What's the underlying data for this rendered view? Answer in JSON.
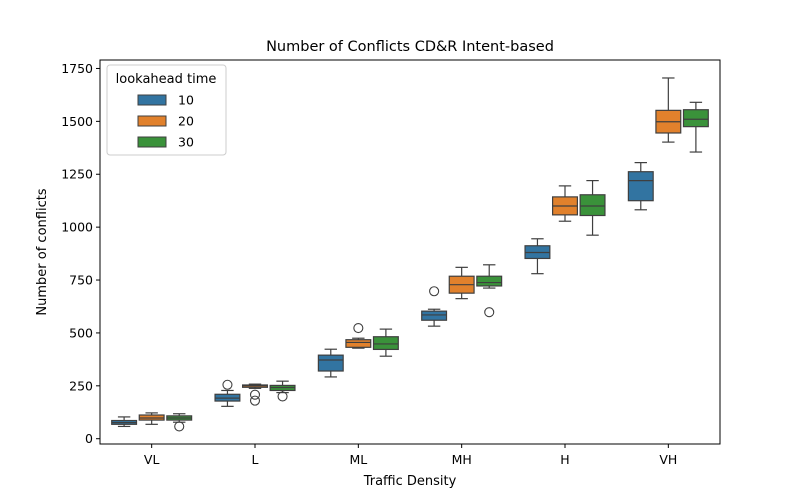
{
  "chart_data": {
    "type": "boxplot",
    "title": "Number of Conflicts CD&R Intent-based",
    "xlabel": "Traffic Density",
    "ylabel": "Number of conflicts",
    "ylim": [
      -25,
      1790
    ],
    "yticks": [
      0,
      250,
      500,
      750,
      1000,
      1250,
      1500,
      1750
    ],
    "ytick_labels": [
      "0",
      "250",
      "500",
      "750",
      "1000",
      "1250",
      "1500",
      "1750"
    ],
    "categories": [
      "VL",
      "L",
      "ML",
      "MH",
      "H",
      "VH"
    ],
    "legend": {
      "title": "lookahead time",
      "position": "top-left"
    },
    "series": [
      {
        "name": "10",
        "color": "#3274a1",
        "boxes": [
          {
            "whisker_low": 58,
            "q1": 68,
            "median": 76,
            "q3": 86,
            "whisker_high": 103,
            "outliers": []
          },
          {
            "whisker_low": 153,
            "q1": 178,
            "median": 192,
            "q3": 210,
            "whisker_high": 228,
            "outliers": [
              255
            ]
          },
          {
            "whisker_low": 292,
            "q1": 320,
            "median": 372,
            "q3": 395,
            "whisker_high": 423,
            "outliers": []
          },
          {
            "whisker_low": 532,
            "q1": 560,
            "median": 585,
            "q3": 603,
            "whisker_high": 612,
            "outliers": [
              697
            ]
          },
          {
            "whisker_low": 780,
            "q1": 852,
            "median": 880,
            "q3": 912,
            "whisker_high": 945,
            "outliers": []
          },
          {
            "whisker_low": 1082,
            "q1": 1125,
            "median": 1220,
            "q3": 1262,
            "whisker_high": 1305,
            "outliers": []
          }
        ]
      },
      {
        "name": "20",
        "color": "#e1812c",
        "boxes": [
          {
            "whisker_low": 68,
            "q1": 88,
            "median": 98,
            "q3": 112,
            "whisker_high": 122,
            "outliers": []
          },
          {
            "whisker_low": 238,
            "q1": 243,
            "median": 250,
            "q3": 254,
            "whisker_high": 258,
            "outliers": [
              208,
              180
            ]
          },
          {
            "whisker_low": 428,
            "q1": 432,
            "median": 455,
            "q3": 468,
            "whisker_high": 475,
            "outliers": [
              523
            ]
          },
          {
            "whisker_low": 662,
            "q1": 688,
            "median": 728,
            "q3": 768,
            "whisker_high": 810,
            "outliers": []
          },
          {
            "whisker_low": 1028,
            "q1": 1058,
            "median": 1100,
            "q3": 1143,
            "whisker_high": 1195,
            "outliers": []
          },
          {
            "whisker_low": 1402,
            "q1": 1445,
            "median": 1498,
            "q3": 1552,
            "whisker_high": 1705,
            "outliers": []
          }
        ]
      },
      {
        "name": "30",
        "color": "#3a923a",
        "boxes": [
          {
            "whisker_low": 78,
            "q1": 88,
            "median": 98,
            "q3": 108,
            "whisker_high": 118,
            "outliers": [
              58
            ]
          },
          {
            "whisker_low": 218,
            "q1": 228,
            "median": 242,
            "q3": 252,
            "whisker_high": 272,
            "outliers": [
              200
            ]
          },
          {
            "whisker_low": 390,
            "q1": 422,
            "median": 448,
            "q3": 482,
            "whisker_high": 518,
            "outliers": []
          },
          {
            "whisker_low": 712,
            "q1": 722,
            "median": 738,
            "q3": 768,
            "whisker_high": 822,
            "outliers": [
              598
            ]
          },
          {
            "whisker_low": 962,
            "q1": 1055,
            "median": 1100,
            "q3": 1153,
            "whisker_high": 1220,
            "outliers": []
          },
          {
            "whisker_low": 1355,
            "q1": 1475,
            "median": 1510,
            "q3": 1555,
            "whisker_high": 1590,
            "outliers": []
          }
        ]
      }
    ]
  }
}
